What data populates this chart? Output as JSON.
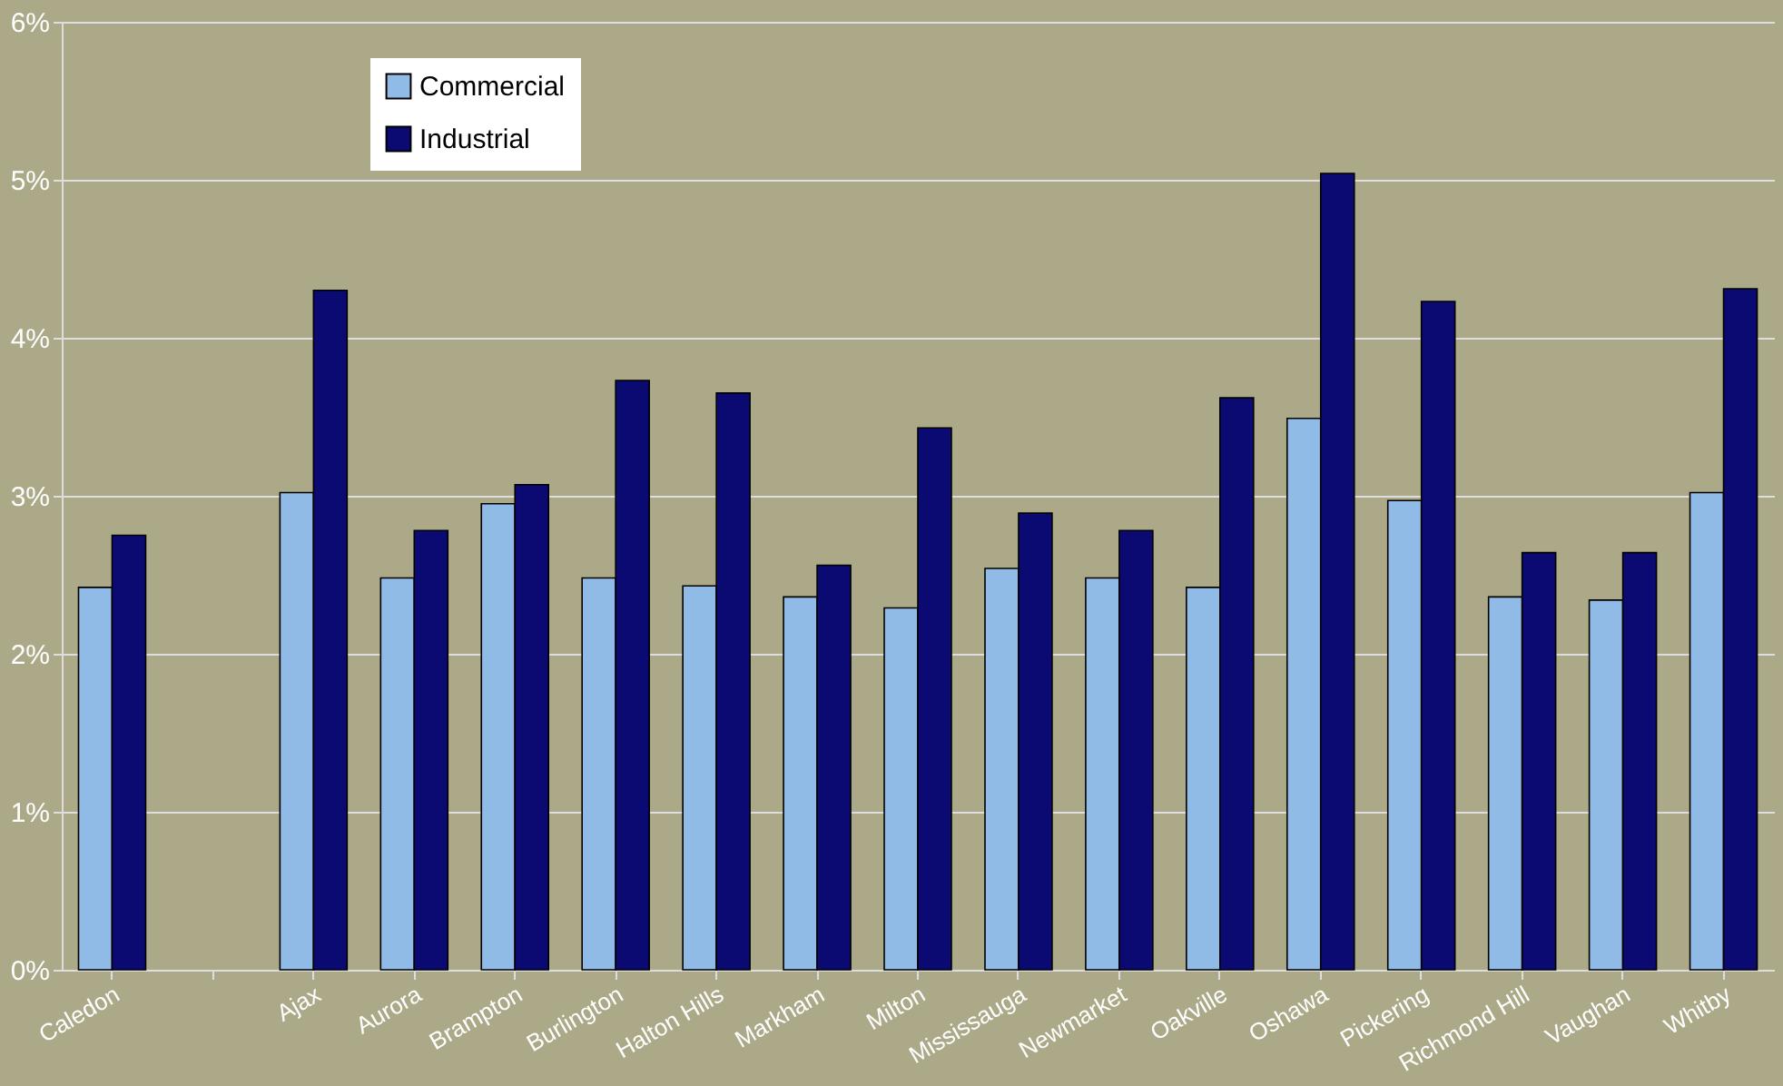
{
  "chart_data": {
    "type": "bar",
    "categories": [
      "Caledon",
      null,
      "Ajax",
      "Aurora",
      "Brampton",
      "Burlington",
      "Halton Hills",
      "Markham",
      "Milton",
      "Mississauga",
      "Newmarket",
      "Oakville",
      "Oshawa",
      "Pickering",
      "Richmond Hill",
      "Vaughan",
      "Whitby"
    ],
    "series": [
      {
        "name": "Commercial",
        "color": "#8fbbe6",
        "values": [
          2.42,
          null,
          3.02,
          2.48,
          2.95,
          2.48,
          2.43,
          2.36,
          2.29,
          2.54,
          2.48,
          2.42,
          3.49,
          2.97,
          2.36,
          2.34,
          3.02
        ]
      },
      {
        "name": "Industrial",
        "color": "#0a0a72",
        "values": [
          2.75,
          null,
          4.3,
          2.78,
          3.07,
          3.73,
          3.65,
          2.56,
          3.43,
          2.89,
          2.78,
          3.62,
          5.04,
          4.23,
          2.64,
          2.64,
          4.31
        ]
      }
    ],
    "ylim": [
      0,
      6
    ],
    "yticks": [
      {
        "value": 0,
        "label": "0%"
      },
      {
        "value": 1,
        "label": "1%"
      },
      {
        "value": 2,
        "label": "2%"
      },
      {
        "value": 3,
        "label": "3%"
      },
      {
        "value": 4,
        "label": "4%"
      },
      {
        "value": 5,
        "label": "5%"
      },
      {
        "value": 6,
        "label": "6%"
      }
    ],
    "grid": "y",
    "legend": "top left"
  }
}
